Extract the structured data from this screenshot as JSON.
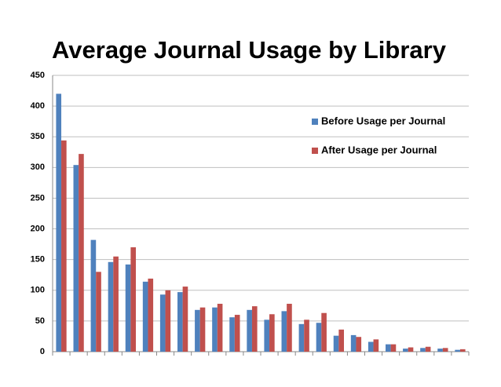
{
  "chart_data": {
    "type": "bar",
    "title": "Average Journal Usage by Library",
    "categories": [
      null,
      null,
      null,
      null,
      null,
      null,
      null,
      null,
      null,
      null,
      null,
      null,
      null,
      null,
      null,
      null,
      null,
      null,
      null,
      null,
      null,
      null,
      null,
      null
    ],
    "series": [
      {
        "name": "Before Usage per Journal",
        "color": "#4f81bd",
        "values": [
          420,
          304,
          182,
          146,
          142,
          114,
          93,
          97,
          68,
          72,
          56,
          68,
          52,
          66,
          45,
          47,
          26,
          27,
          16,
          12,
          5,
          6,
          5,
          3
        ]
      },
      {
        "name": "After Usage per Journal",
        "color": "#c0504d",
        "values": [
          344,
          322,
          130,
          155,
          170,
          119,
          100,
          106,
          72,
          78,
          60,
          74,
          61,
          78,
          52,
          63,
          36,
          24,
          20,
          12,
          7,
          8,
          6,
          4
        ]
      }
    ],
    "ylim": [
      0,
      450
    ],
    "yticks": [
      0,
      50,
      100,
      150,
      200,
      250,
      300,
      350,
      400,
      450
    ],
    "grid": true,
    "legend": "upper right"
  }
}
